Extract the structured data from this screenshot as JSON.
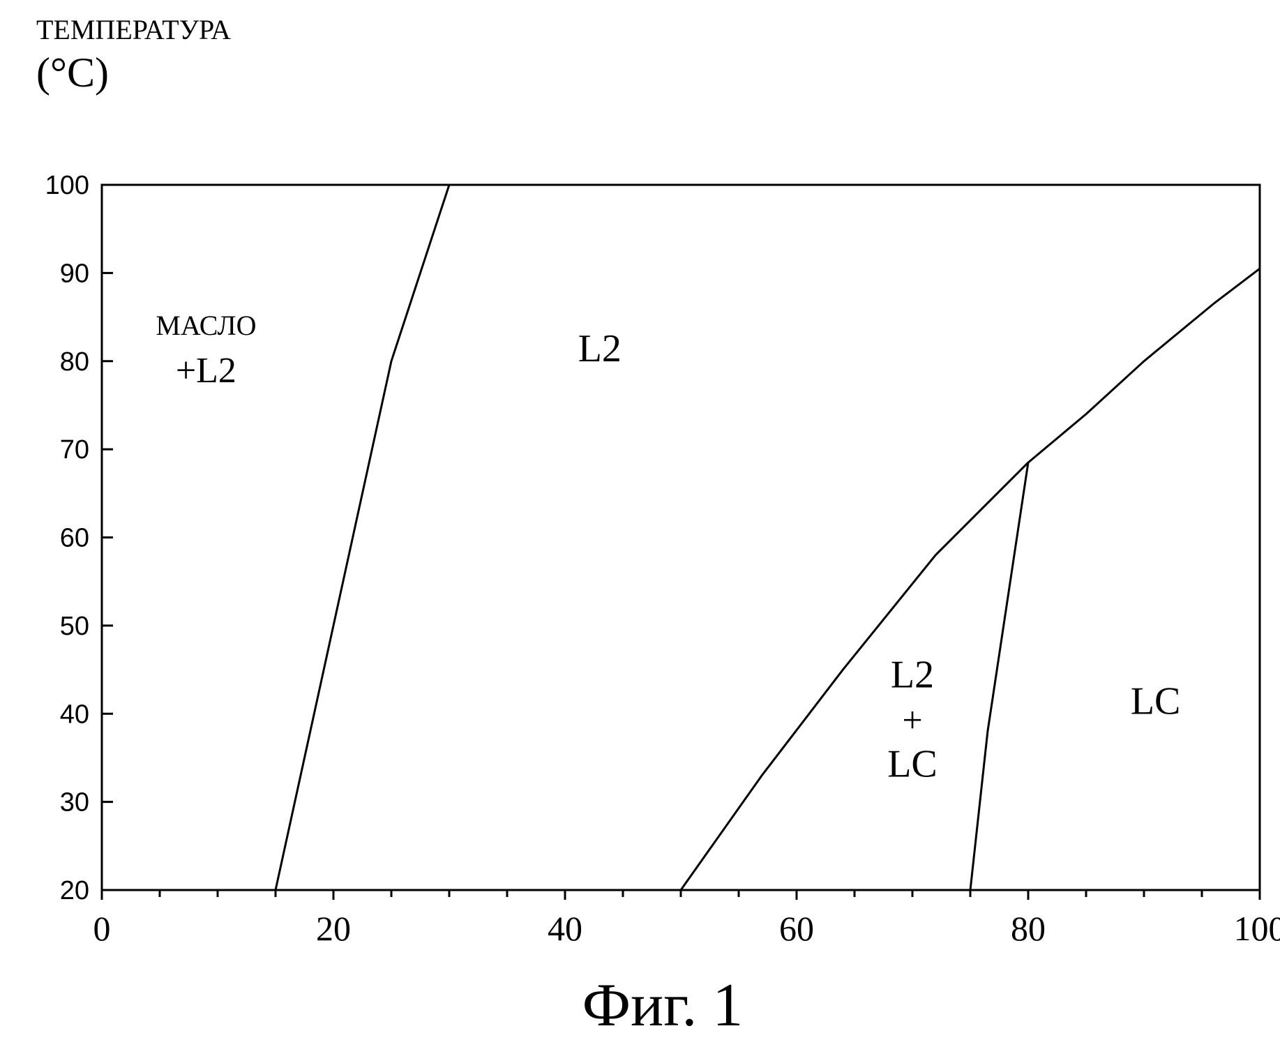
{
  "chart_data": {
    "type": "line",
    "ylabel_line1": "ТЕМПЕРАТУРА",
    "ylabel_line2": "(°C)",
    "caption": "Фиг. 1",
    "xlim": [
      0,
      100
    ],
    "ylim": [
      20,
      100
    ],
    "x_ticks": [
      0,
      20,
      40,
      60,
      80,
      100
    ],
    "y_ticks": [
      20,
      30,
      40,
      50,
      60,
      70,
      80,
      90,
      100
    ],
    "x_minor_step": 5,
    "grid": false,
    "legend": "none",
    "series": [
      {
        "points": [
          [
            15,
            20
          ],
          [
            18,
            38
          ],
          [
            22,
            62
          ],
          [
            25,
            80
          ],
          [
            27,
            88
          ],
          [
            30,
            100
          ]
        ]
      },
      {
        "points": [
          [
            50,
            20
          ],
          [
            57,
            33
          ],
          [
            64,
            45
          ],
          [
            72,
            58
          ],
          [
            80,
            68.5
          ],
          [
            85,
            74
          ],
          [
            90,
            80
          ],
          [
            96,
            86.5
          ],
          [
            100,
            90.5
          ]
        ]
      },
      {
        "points": [
          [
            75,
            20
          ],
          [
            76.5,
            38
          ],
          [
            80,
            68.5
          ]
        ]
      },
      {
        "points": [
          [
            100,
            20
          ],
          [
            100,
            90.5
          ]
        ]
      }
    ],
    "region_labels": [
      {
        "lines": [
          "МАСЛО",
          "+L2"
        ],
        "x": 9,
        "y": 83
      },
      {
        "lines": [
          "L2"
        ],
        "x": 43,
        "y": 80
      },
      {
        "lines": [
          "L2",
          "+",
          "LC"
        ],
        "x": 70,
        "y": 43
      },
      {
        "lines": [
          "LC"
        ],
        "x": 91,
        "y": 40
      }
    ]
  }
}
